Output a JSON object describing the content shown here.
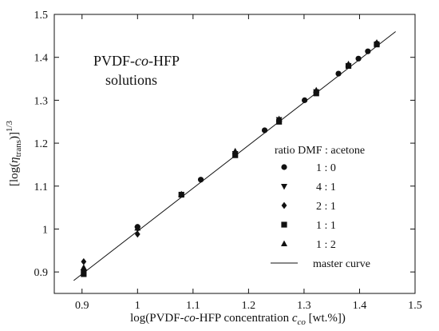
{
  "chart_data": {
    "type": "scatter",
    "xlabel": {
      "pre": "log(PVDF-",
      "italic": "co",
      "mid": "-HFP concentration ",
      "var": "c",
      "sub": "co",
      "post": " [wt.%])"
    },
    "ylabel": {
      "pre": "[log(",
      "var": "η",
      "sub": "trans",
      "post": ")]",
      "sup": "1/3"
    },
    "xlim": [
      0.85,
      1.5
    ],
    "ylim": [
      0.85,
      1.5
    ],
    "xticks": [
      0.9,
      1,
      1.1,
      1.2,
      1.3,
      1.4,
      1.5
    ],
    "yticks": [
      0.9,
      1,
      1.1,
      1.2,
      1.3,
      1.4,
      1.5
    ],
    "xtick_labels": [
      "0.9",
      "1",
      "1.1",
      "1.2",
      "1.3",
      "1.4",
      "1.5"
    ],
    "ytick_labels": [
      "0.9",
      "1",
      "1.1",
      "1.2",
      "1.3",
      "1.4",
      "1.5"
    ],
    "grid": false,
    "annotation": {
      "line1_pre": "PVDF-",
      "line1_italic": "co",
      "line1_post": "-HFP",
      "line2": "solutions"
    },
    "legend": {
      "title": "ratio DMF : acetone",
      "placement": "lower-right"
    },
    "series": [
      {
        "name": "1 : 0",
        "marker": "circle",
        "x": [
          0.903,
          1.0,
          1.114,
          1.229,
          1.301,
          1.362,
          1.398,
          1.415,
          1.431
        ],
        "y": [
          0.903,
          1.005,
          1.115,
          1.23,
          1.3,
          1.362,
          1.397,
          1.414,
          1.432
        ]
      },
      {
        "name": "4 : 1",
        "marker": "triangle-down",
        "x": [
          0.903,
          1.0,
          1.176,
          1.255,
          1.322
        ],
        "y": [
          0.9,
          1.0,
          1.176,
          1.255,
          1.32
        ]
      },
      {
        "name": "2 : 1",
        "marker": "diamond",
        "x": [
          0.903,
          1.0
        ],
        "y": [
          0.924,
          0.988
        ]
      },
      {
        "name": "1 : 1",
        "marker": "square",
        "x": [
          0.903,
          1.079,
          1.176,
          1.255,
          1.322,
          1.38,
          1.431
        ],
        "y": [
          0.895,
          1.08,
          1.172,
          1.25,
          1.316,
          1.38,
          1.43
        ]
      },
      {
        "name": "1 : 2",
        "marker": "triangle-up",
        "x": [
          0.903,
          1.0,
          1.079,
          1.176,
          1.255,
          1.322,
          1.38,
          1.431
        ],
        "y": [
          0.91,
          1.002,
          1.081,
          1.181,
          1.256,
          1.323,
          1.384,
          1.434
        ]
      }
    ],
    "master_curve": {
      "name": "master curve",
      "x": [
        0.885,
        1.465
      ],
      "y": [
        0.88,
        1.46
      ]
    }
  }
}
